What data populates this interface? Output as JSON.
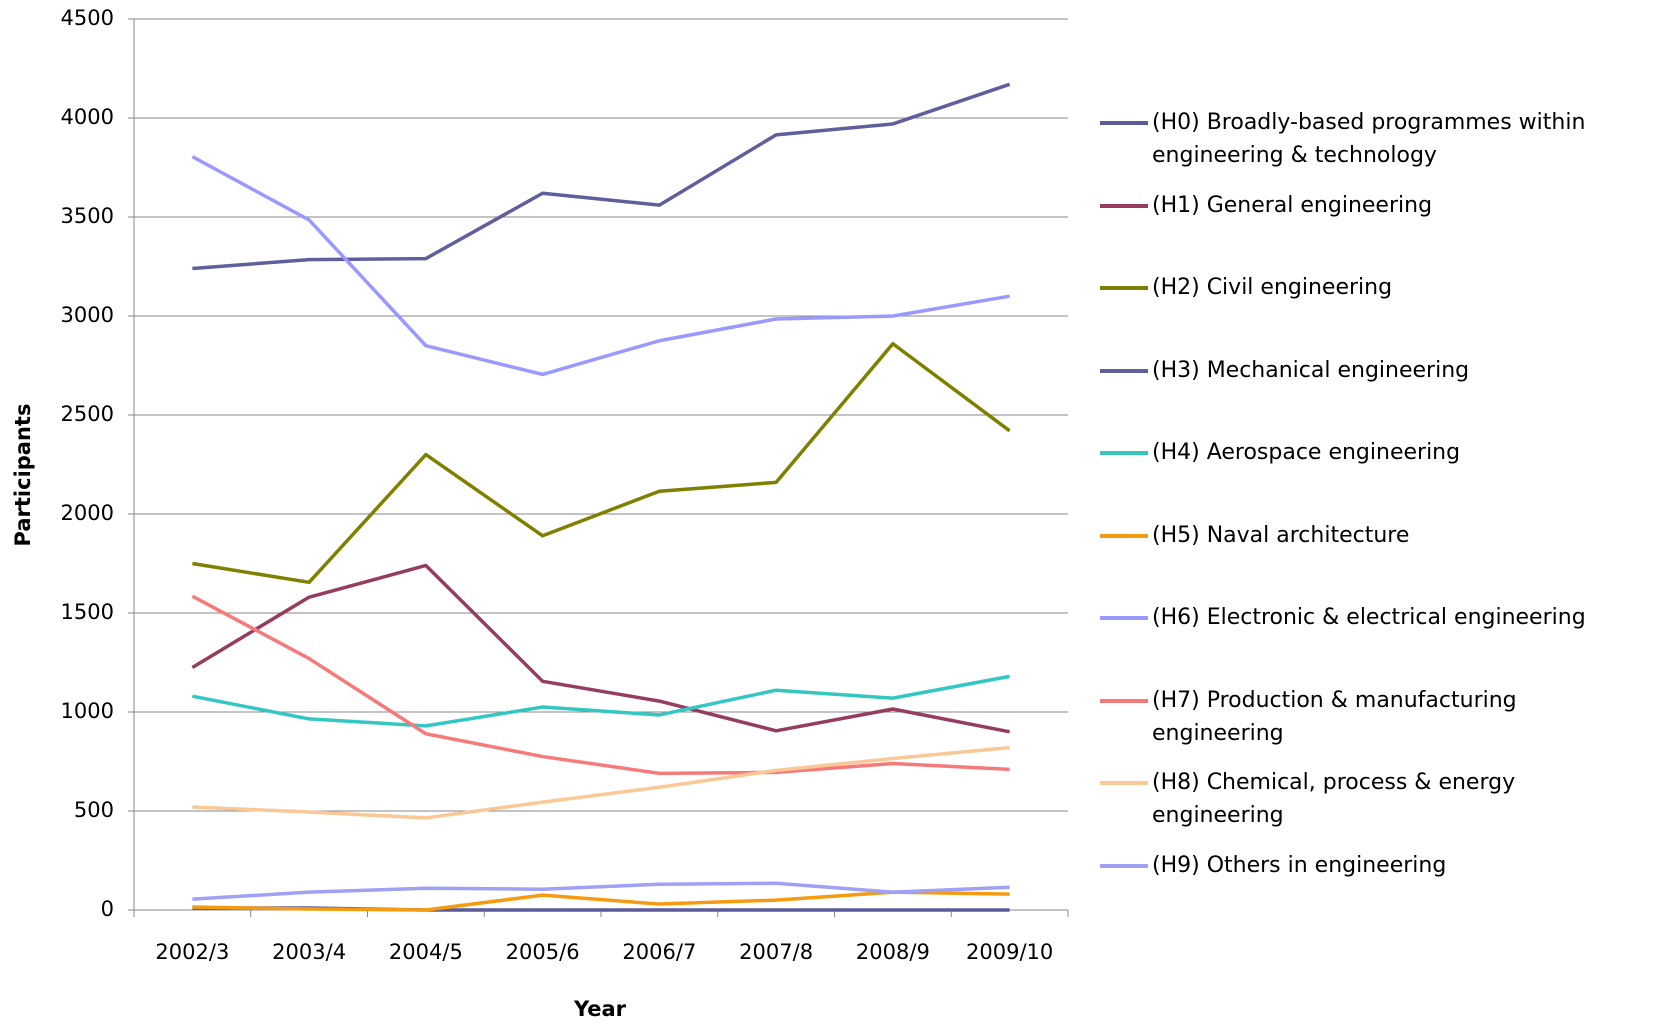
{
  "chart_data": {
    "type": "line",
    "x_label": "Year",
    "y_label": "Participants",
    "categories": [
      "2002/3",
      "2003/4",
      "2004/5",
      "2005/6",
      "2006/7",
      "2007/8",
      "2008/9",
      "2009/10"
    ],
    "ylim": [
      0,
      4500
    ],
    "yticks": [
      0,
      500,
      1000,
      1500,
      2000,
      2500,
      3000,
      3500,
      4000,
      4500
    ],
    "grid": true,
    "legend": "right",
    "series": [
      {
        "name": "(H0) Broadly-based programmes within engineering & technology",
        "color": "#5b5b9b",
        "values": [
          10,
          10,
          0,
          0,
          0,
          0,
          0,
          0
        ]
      },
      {
        "name": "(H1) General engineering",
        "color": "#963c61",
        "values": [
          1225,
          1580,
          1740,
          1155,
          1055,
          905,
          1015,
          900
        ]
      },
      {
        "name": "(H2) Civil engineering",
        "color": "#808000",
        "values": [
          1750,
          1655,
          2300,
          1890,
          2115,
          2160,
          2860,
          2420
        ]
      },
      {
        "name": "(H3) Mechanical engineering",
        "color": "#5f5f9e",
        "values": [
          3240,
          3285,
          3290,
          3620,
          3560,
          3915,
          3970,
          4170
        ]
      },
      {
        "name": "(H4) Aerospace engineering",
        "color": "#33c7c2",
        "values": [
          1080,
          965,
          930,
          1025,
          985,
          1110,
          1070,
          1180
        ]
      },
      {
        "name": "(H5) Naval architecture",
        "color": "#f59b10",
        "values": [
          15,
          5,
          0,
          75,
          30,
          50,
          90,
          80
        ]
      },
      {
        "name": "(H6) Electronic & electrical engineering",
        "color": "#9999ff",
        "values": [
          3805,
          3485,
          2850,
          2705,
          2875,
          2985,
          3000,
          3100
        ]
      },
      {
        "name": "(H7) Production & manufacturing engineering",
        "color": "#f77a7a",
        "values": [
          1585,
          1270,
          890,
          775,
          690,
          695,
          740,
          710
        ]
      },
      {
        "name": "(H8) Chemical, process & energy engineering",
        "color": "#fac896",
        "values": [
          520,
          495,
          465,
          545,
          620,
          705,
          765,
          820
        ]
      },
      {
        "name": "(H9) Others in engineering",
        "color": "#a0a0f5",
        "values": [
          55,
          90,
          110,
          105,
          130,
          135,
          90,
          115
        ]
      }
    ]
  }
}
